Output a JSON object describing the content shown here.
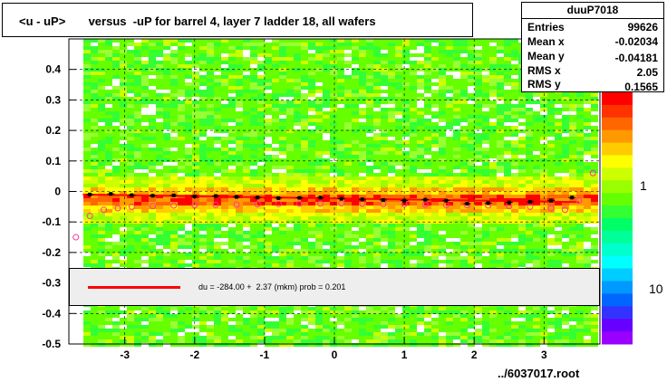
{
  "title": "<u - uP>       versus  -uP for barrel 4, layer 7 ladder 18, all wafers",
  "stats": {
    "name": "duuP7018",
    "rows": [
      {
        "label": "Entries",
        "value": "99626"
      },
      {
        "label": "Mean x",
        "value": "-0.02034"
      },
      {
        "label": "Mean y",
        "value": "-0.04181"
      },
      {
        "label": "RMS x",
        "value": "2.05"
      },
      {
        "label": "RMS y",
        "value": "0.1565"
      }
    ]
  },
  "legend": {
    "text": "du = -284.00 +  2.37 (mkm) prob = 0.201",
    "line_color": "#ff0000"
  },
  "footer": "../6037017.root",
  "chart_data": {
    "type": "heatmap",
    "xlim": [
      -3.8,
      3.8
    ],
    "ylim": [
      -0.5,
      0.5
    ],
    "x_ticks": [
      "-3",
      "-2",
      "-1",
      "0",
      "1",
      "2",
      "3"
    ],
    "y_ticks": [
      "-0.5",
      "-0.4",
      "-0.3",
      "-0.2",
      "-0.1",
      "0",
      "0.1",
      "0.2",
      "0.3",
      "0.4"
    ],
    "colorbar_ticks": [
      "1",
      "10"
    ],
    "grid": true,
    "fit_line": {
      "x": [
        -3.6,
        3.5
      ],
      "y": [
        -0.01,
        -0.035
      ],
      "color": "#ff0000"
    },
    "profile_black": {
      "x": [
        -3.5,
        -3.2,
        -2.9,
        -2.6,
        -2.3,
        -2.0,
        -1.7,
        -1.4,
        -1.1,
        -0.8,
        -0.5,
        -0.2,
        0.1,
        0.4,
        0.7,
        1.0,
        1.3,
        1.6,
        1.9,
        2.2,
        2.5,
        2.8,
        3.1,
        3.4
      ],
      "y": [
        -0.01,
        -0.008,
        -0.012,
        -0.014,
        -0.013,
        -0.016,
        -0.015,
        -0.018,
        -0.02,
        -0.022,
        -0.021,
        -0.02,
        -0.024,
        -0.026,
        -0.028,
        -0.03,
        -0.027,
        -0.03,
        -0.04,
        -0.038,
        -0.036,
        -0.034,
        -0.03,
        -0.02
      ]
    },
    "profile_pink": {
      "x": [
        -3.7,
        -3.5,
        -3.3,
        -3.1,
        -2.9,
        -2.6,
        -2.3,
        -2.0,
        -1.7,
        -1.4,
        -1.1,
        -0.8,
        -0.5,
        -0.2,
        0.1,
        0.4,
        0.7,
        1.0,
        1.3,
        1.6,
        1.9,
        2.2,
        2.5,
        2.8,
        3.1,
        3.3,
        3.5,
        3.7
      ],
      "y": [
        -0.15,
        -0.08,
        -0.06,
        -0.055,
        -0.05,
        -0.048,
        -0.046,
        -0.045,
        -0.044,
        -0.043,
        -0.042,
        -0.041,
        -0.04,
        -0.04,
        -0.039,
        -0.04,
        -0.041,
        -0.042,
        -0.043,
        -0.044,
        -0.045,
        -0.046,
        -0.048,
        -0.05,
        -0.055,
        -0.06,
        -0.03,
        0.06
      ]
    }
  }
}
